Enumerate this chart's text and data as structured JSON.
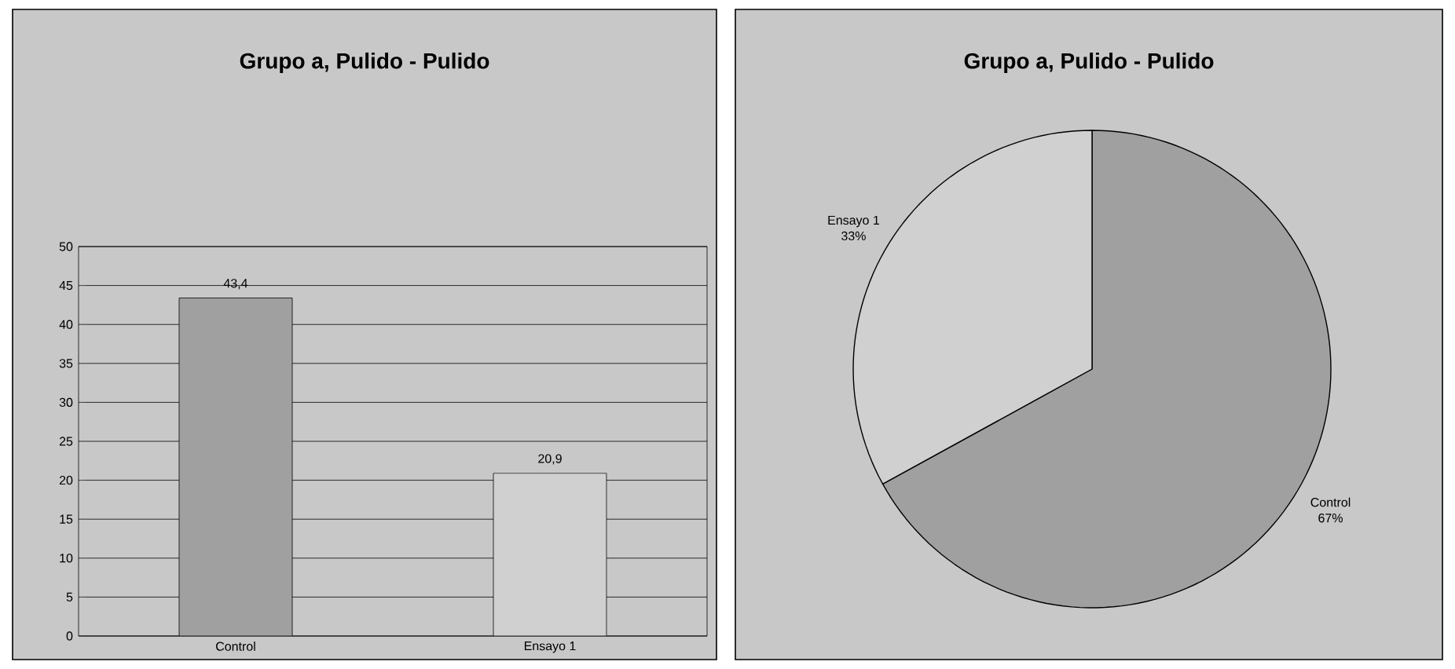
{
  "chart_data": [
    {
      "type": "bar",
      "title": "Grupo a,  Pulido - Pulido",
      "categories": [
        "Control",
        "Ensayo 1"
      ],
      "values": [
        43.4,
        20.9
      ],
      "colors": [
        "#a0a0a0",
        "#d0d0d0"
      ],
      "value_labels": [
        "43,4",
        "20,9"
      ],
      "ylim": [
        0,
        50
      ],
      "yticks": [
        0,
        5,
        10,
        15,
        20,
        25,
        30,
        35,
        40,
        45,
        50
      ],
      "grid": "y"
    },
    {
      "type": "pie",
      "title": "Grupo a,  Pulido - Pulido",
      "categories": [
        "Control",
        "Ensayo 1"
      ],
      "values": [
        67,
        33
      ],
      "colors": [
        "#a0a0a0",
        "#d0d0d0"
      ],
      "value_labels": [
        "67%",
        "33%"
      ]
    }
  ]
}
